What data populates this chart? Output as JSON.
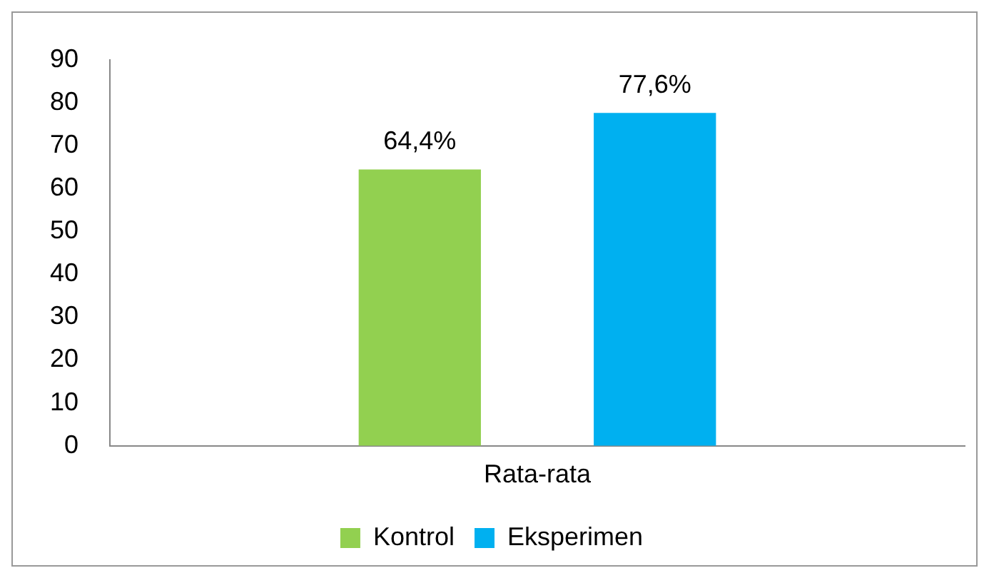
{
  "chart_data": {
    "type": "bar",
    "categories": [
      "Rata-rata"
    ],
    "series": [
      {
        "name": "Kontrol",
        "color": "#92d050",
        "values": [
          64.4
        ],
        "value_labels": [
          "64,4%"
        ]
      },
      {
        "name": "Eksperimen",
        "color": "#00b0f0",
        "values": [
          77.6
        ],
        "value_labels": [
          "77,6%"
        ]
      }
    ],
    "ylim": [
      0,
      90
    ],
    "yticks": [
      0,
      10,
      20,
      30,
      40,
      50,
      60,
      70,
      80,
      90
    ],
    "grid": false,
    "legend": "bottom"
  }
}
